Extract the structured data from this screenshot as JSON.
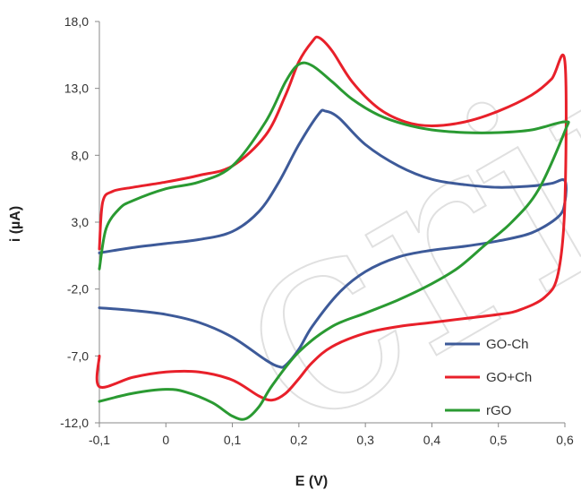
{
  "chart_data": {
    "type": "line",
    "xlabel": "E (V)",
    "ylabel": "i (µA)",
    "xlim": [
      -0.1,
      0.6
    ],
    "ylim": [
      -12.0,
      18.0
    ],
    "xticks": [
      -0.1,
      0,
      0.1,
      0.2,
      0.3,
      0.4,
      0.5,
      0.6
    ],
    "xtick_labels": [
      "-0,1",
      "0",
      "0,1",
      "0,2",
      "0,3",
      "0,4",
      "0,5",
      "0,6"
    ],
    "yticks": [
      -12,
      -7,
      -2,
      3,
      8,
      13,
      18
    ],
    "ytick_labels": [
      "-12,0",
      "-7,0",
      "-2,0",
      "3,0",
      "8,0",
      "13,0",
      "18,0"
    ],
    "grid": false,
    "legend_position": "bottom-right",
    "series": [
      {
        "name": "GO-Ch",
        "color": "#3d5a99",
        "x": [
          -0.1,
          -0.05,
          0.0,
          0.05,
          0.1,
          0.14,
          0.17,
          0.2,
          0.23,
          0.24,
          0.26,
          0.3,
          0.35,
          0.4,
          0.45,
          0.5,
          0.55,
          0.58,
          0.6,
          0.6,
          0.59,
          0.55,
          0.5,
          0.45,
          0.4,
          0.35,
          0.3,
          0.26,
          0.22,
          0.2,
          0.18,
          0.17,
          0.15,
          0.1,
          0.05,
          0.0,
          -0.05,
          -0.1
        ],
        "y": [
          0.7,
          1.1,
          1.4,
          1.7,
          2.3,
          3.8,
          6.0,
          8.8,
          11.1,
          11.3,
          10.8,
          8.8,
          7.2,
          6.2,
          5.8,
          5.6,
          5.7,
          5.9,
          6.1,
          4.5,
          3.4,
          2.2,
          1.6,
          1.2,
          0.9,
          0.4,
          -0.7,
          -2.3,
          -4.8,
          -6.5,
          -7.7,
          -7.8,
          -7.3,
          -5.6,
          -4.5,
          -3.9,
          -3.6,
          -3.4
        ]
      },
      {
        "name": "GO+Ch",
        "color": "#e8202a",
        "x": [
          -0.1,
          -0.095,
          -0.08,
          -0.05,
          0.0,
          0.05,
          0.1,
          0.15,
          0.18,
          0.2,
          0.22,
          0.23,
          0.25,
          0.28,
          0.32,
          0.36,
          0.4,
          0.45,
          0.5,
          0.55,
          0.58,
          0.6,
          0.6,
          0.59,
          0.57,
          0.53,
          0.5,
          0.45,
          0.4,
          0.35,
          0.3,
          0.25,
          0.22,
          0.2,
          0.18,
          0.16,
          0.14,
          0.1,
          0.05,
          0.0,
          -0.05,
          -0.1,
          -0.1
        ],
        "y": [
          1.0,
          4.5,
          5.3,
          5.6,
          6.0,
          6.5,
          7.2,
          9.5,
          12.5,
          15.0,
          16.5,
          16.8,
          15.8,
          13.5,
          11.5,
          10.5,
          10.2,
          10.5,
          11.3,
          12.5,
          13.7,
          15.0,
          4.5,
          -0.8,
          -2.6,
          -3.6,
          -3.9,
          -4.2,
          -4.5,
          -4.8,
          -5.3,
          -6.3,
          -7.5,
          -8.7,
          -9.8,
          -10.3,
          -10.0,
          -8.8,
          -8.2,
          -8.2,
          -8.6,
          -9.3,
          -7.0
        ]
      },
      {
        "name": "rGO",
        "color": "#2a9a32",
        "x": [
          -0.1,
          -0.09,
          -0.07,
          -0.05,
          0.0,
          0.05,
          0.1,
          0.15,
          0.18,
          0.2,
          0.22,
          0.25,
          0.28,
          0.32,
          0.36,
          0.4,
          0.45,
          0.5,
          0.55,
          0.6,
          0.6,
          0.56,
          0.52,
          0.48,
          0.44,
          0.4,
          0.35,
          0.3,
          0.25,
          0.2,
          0.16,
          0.14,
          0.12,
          0.1,
          0.07,
          0.03,
          0.0,
          -0.05,
          -0.1
        ],
        "y": [
          -0.5,
          2.5,
          4.0,
          4.6,
          5.5,
          6.0,
          7.2,
          10.5,
          13.5,
          14.8,
          14.7,
          13.5,
          12.2,
          11.0,
          10.3,
          9.9,
          9.7,
          9.7,
          9.9,
          10.5,
          9.8,
          5.4,
          3.0,
          1.3,
          -0.4,
          -1.6,
          -2.8,
          -3.8,
          -4.8,
          -6.7,
          -9.2,
          -10.8,
          -11.7,
          -11.5,
          -10.5,
          -9.7,
          -9.5,
          -9.8,
          -10.4
        ]
      }
    ]
  }
}
